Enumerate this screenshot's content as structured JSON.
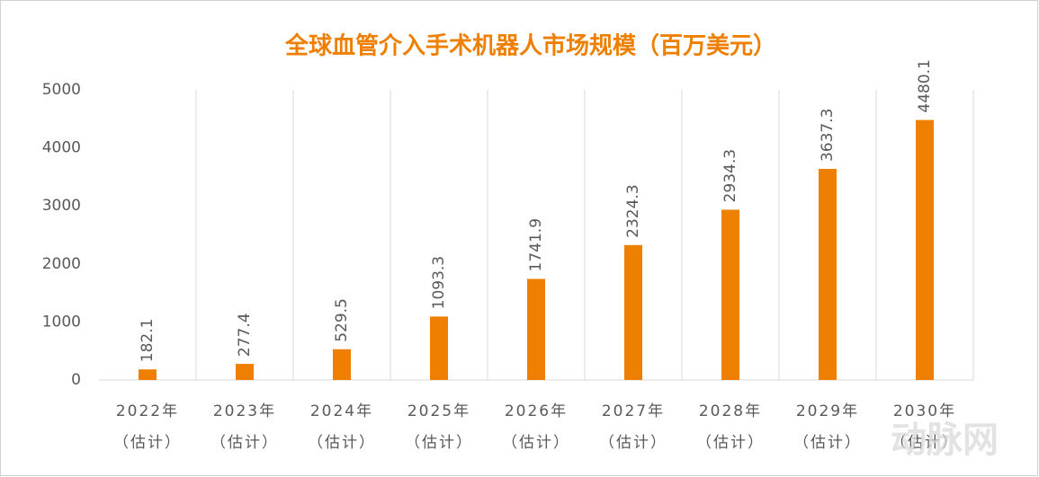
{
  "chart_data": {
    "type": "bar",
    "title": "全球血管介入手术机器人市场规模（百万美元）",
    "categories": [
      [
        "2022年",
        "（估计）"
      ],
      [
        "2023年",
        "（估计）"
      ],
      [
        "2024年",
        "（估计）"
      ],
      [
        "2025年",
        "（估计）"
      ],
      [
        "2026年",
        "（估计）"
      ],
      [
        "2027年",
        "（估计）"
      ],
      [
        "2028年",
        "（估计）"
      ],
      [
        "2029年",
        "（估计）"
      ],
      [
        "2030年",
        "（估计）"
      ]
    ],
    "values": [
      182.1,
      277.4,
      529.5,
      1093.3,
      1741.9,
      2324.3,
      2934.3,
      3637.3,
      4480.1
    ],
    "color": "#ee7f00",
    "ylim": [
      0,
      5000
    ],
    "yticks": [
      0,
      1000,
      2000,
      3000,
      4000,
      5000
    ],
    "watermark": "动脉网"
  }
}
